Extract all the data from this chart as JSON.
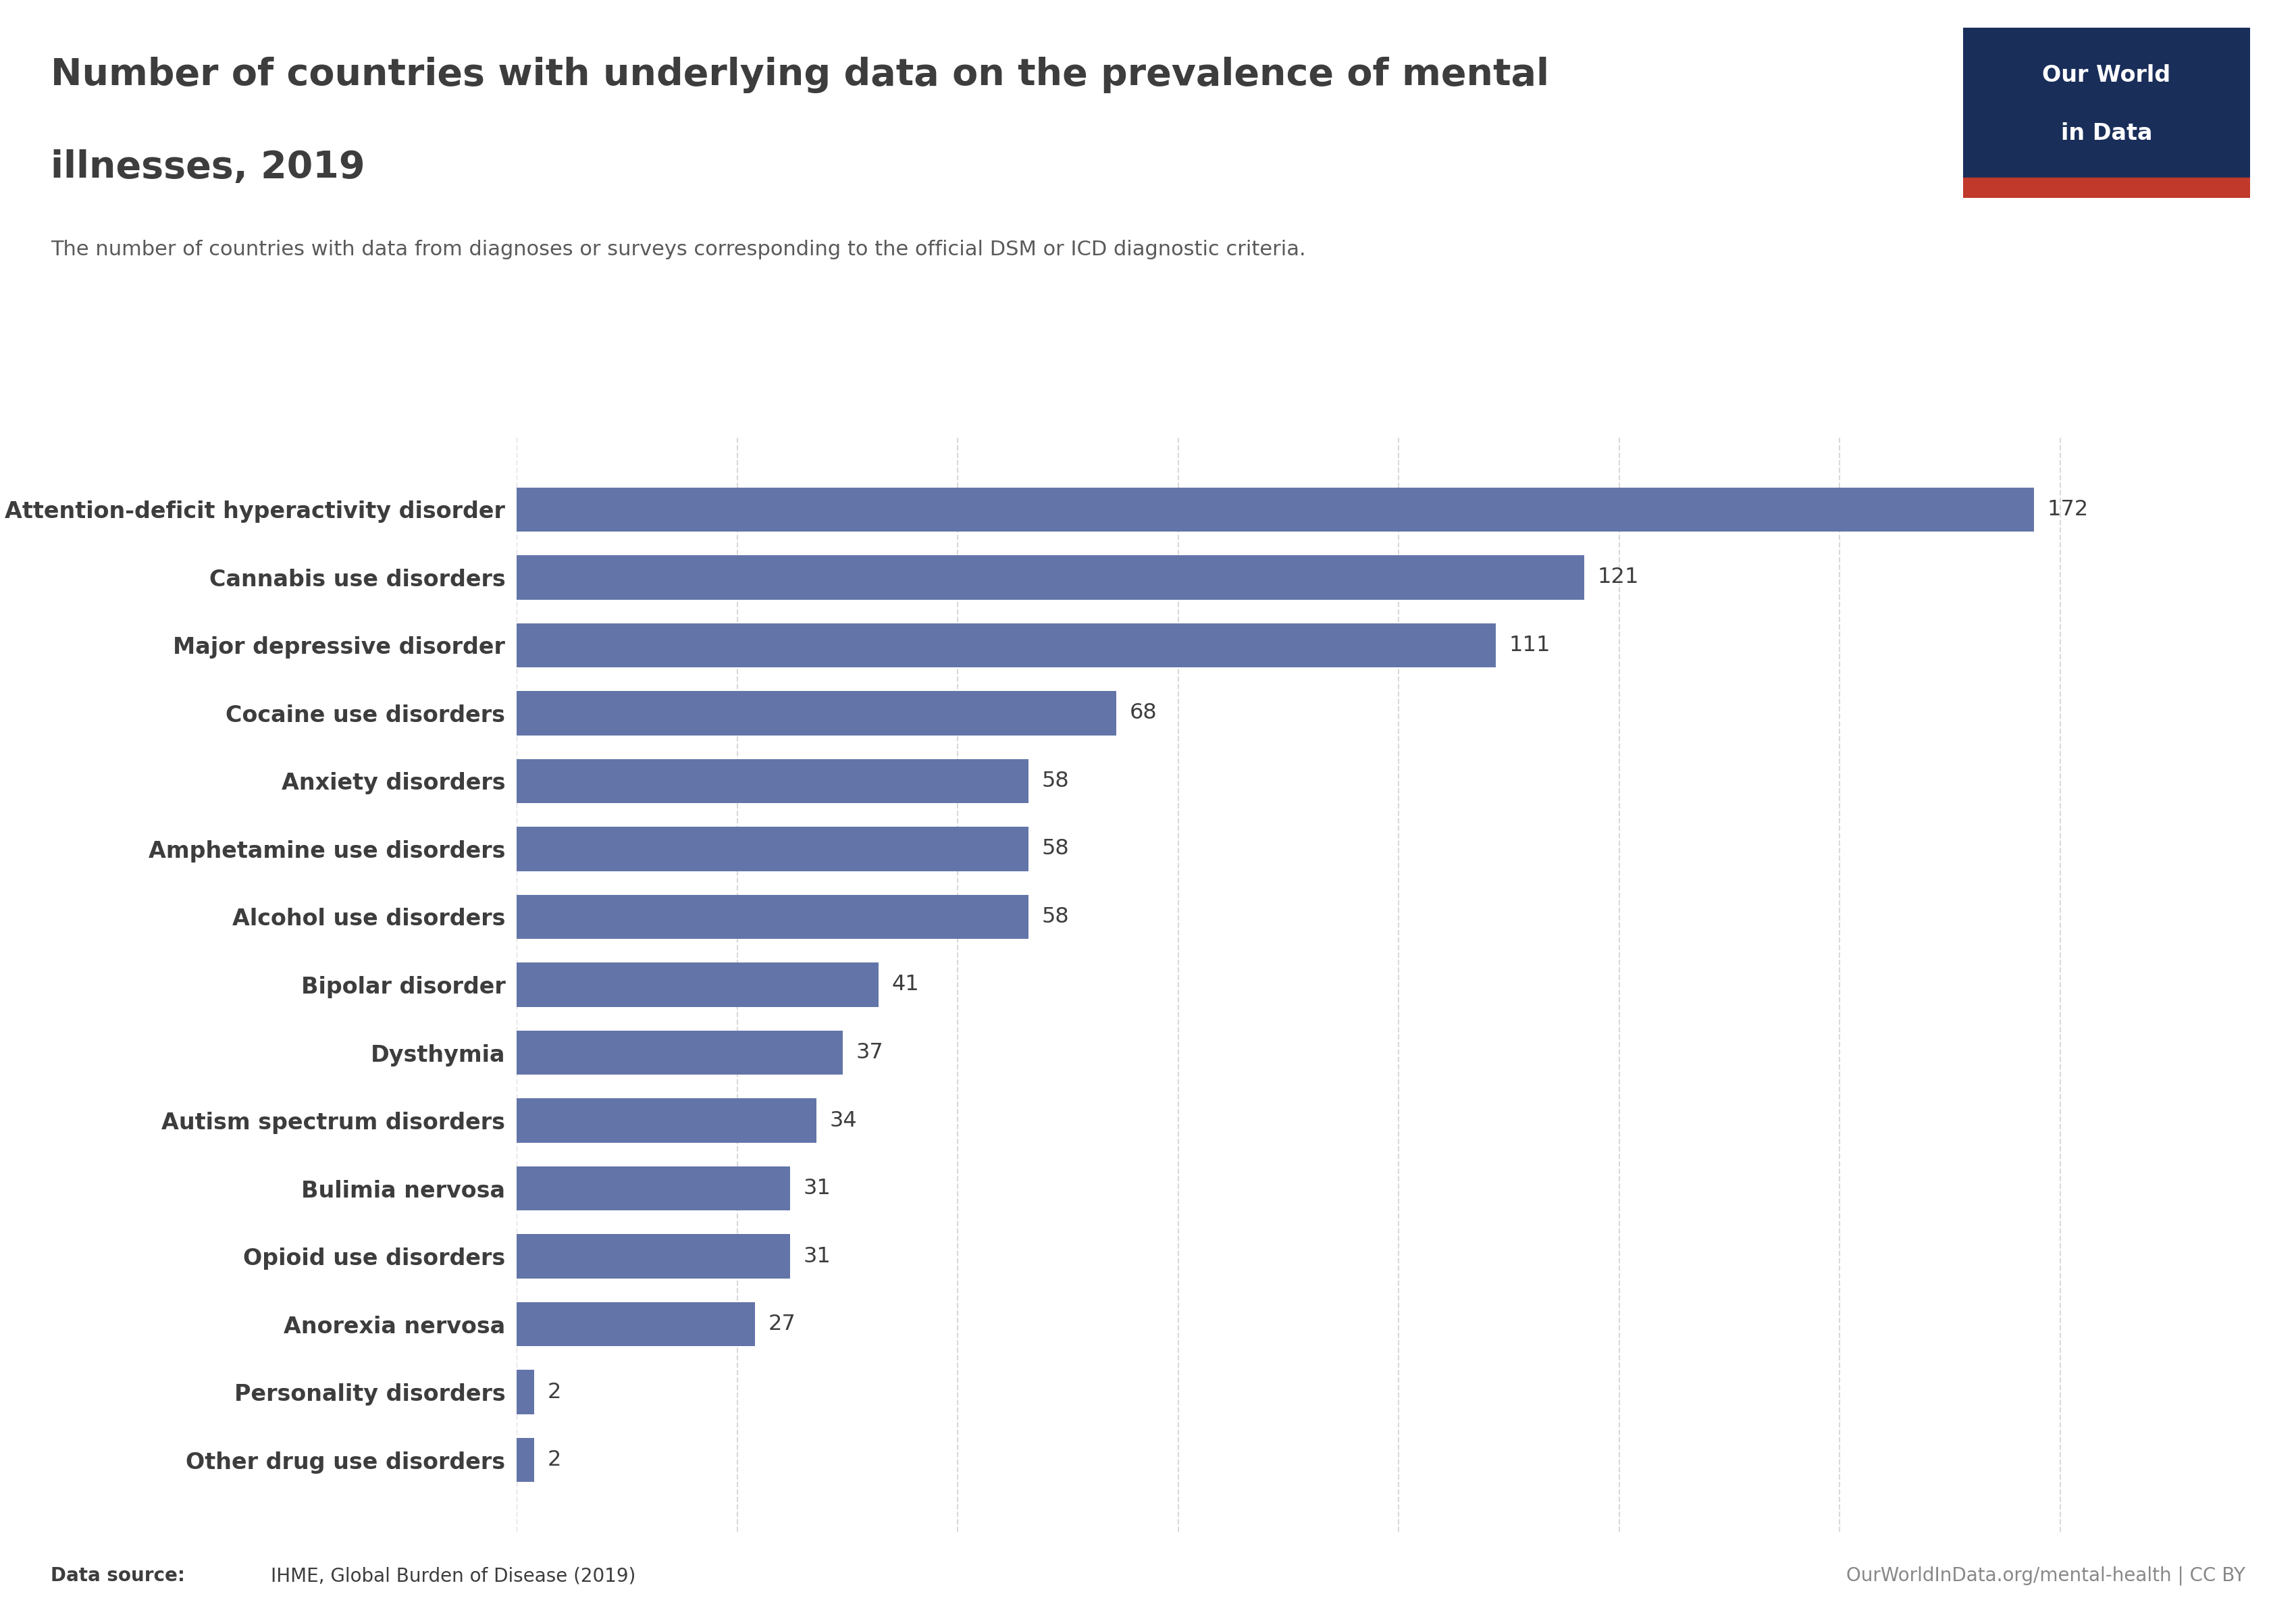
{
  "title_line1": "Number of countries with underlying data on the prevalence of mental",
  "title_line2": "illnesses, 2019",
  "subtitle": "The number of countries with data from diagnoses or surveys corresponding to the official DSM or ICD diagnostic criteria.",
  "categories": [
    "Attention-deficit hyperactivity disorder",
    "Cannabis use disorders",
    "Major depressive disorder",
    "Cocaine use disorders",
    "Anxiety disorders",
    "Amphetamine use disorders",
    "Alcohol use disorders",
    "Bipolar disorder",
    "Dysthymia",
    "Autism spectrum disorders",
    "Bulimia nervosa",
    "Opioid use disorders",
    "Anorexia nervosa",
    "Personality disorders",
    "Other drug use disorders"
  ],
  "values": [
    172,
    121,
    111,
    68,
    58,
    58,
    58,
    41,
    37,
    34,
    31,
    31,
    27,
    2,
    2
  ],
  "bar_color": "#6375a8",
  "background_color": "#ffffff",
  "title_color": "#3d3d3d",
  "subtitle_color": "#5a5a5a",
  "label_color": "#3d3d3d",
  "value_color": "#3d3d3d",
  "grid_color": "#d9d9d9",
  "footer_source_bold": "Data source: ",
  "footer_source_normal": "IHME, Global Burden of Disease (2019)",
  "footer_right": "OurWorldInData.org/mental-health | CC BY",
  "owid_box_color": "#1a2e5a",
  "owid_text_color": "#ffffff",
  "owid_red": "#c0392b",
  "xlim": [
    0,
    190
  ],
  "title_fontsize": 40,
  "subtitle_fontsize": 22,
  "label_fontsize": 24,
  "value_fontsize": 23,
  "footer_fontsize": 20
}
